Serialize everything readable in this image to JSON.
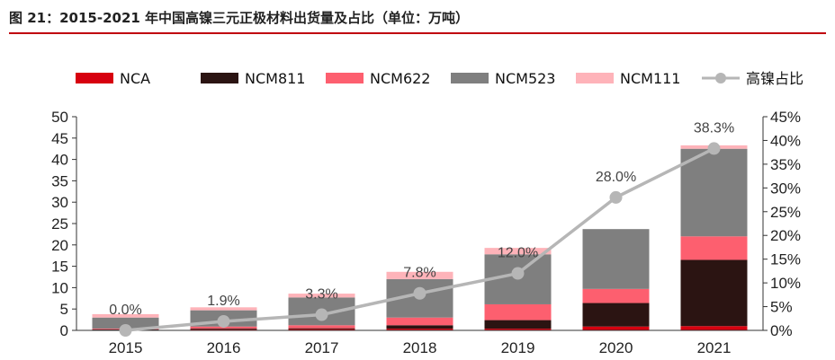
{
  "title": "图 21：2015-2021 年中国高镍三元正极材料出货量及占比（单位：万吨）",
  "chart_data": {
    "type": "bar",
    "stacked": true,
    "categories": [
      "2015",
      "2016",
      "2017",
      "2018",
      "2019",
      "2020",
      "2021"
    ],
    "series": [
      {
        "name": "NCA",
        "values": [
          0.1,
          0.2,
          0.3,
          0.4,
          0.4,
          0.9,
          1.0
        ],
        "color": "#d7000f"
      },
      {
        "name": "NCM811",
        "values": [
          0.1,
          0.2,
          0.2,
          0.8,
          2.0,
          5.5,
          15.5
        ],
        "color": "#2b1412"
      },
      {
        "name": "NCM622",
        "values": [
          0.2,
          0.5,
          0.7,
          1.8,
          3.7,
          3.3,
          5.5
        ],
        "color": "#fd5f6f"
      },
      {
        "name": "NCM523",
        "values": [
          2.6,
          3.8,
          6.5,
          9.0,
          11.7,
          14.0,
          20.5
        ],
        "color": "#7f7f7f"
      },
      {
        "name": "NCM111",
        "values": [
          0.8,
          0.7,
          0.9,
          1.7,
          1.5,
          0.0,
          0.8
        ],
        "color": "#feb3b9"
      }
    ],
    "line_series": {
      "name": "高镍占比",
      "values": [
        0.0,
        1.9,
        3.3,
        7.8,
        12.0,
        28.0,
        38.3
      ],
      "labels": [
        "0.0%",
        "1.9%",
        "3.3%",
        "7.8%",
        "12.0%",
        "28.0%",
        "38.3%"
      ],
      "color": "#b6b6b6",
      "axis": "right"
    },
    "y_left": {
      "min": 0,
      "max": 50,
      "ticks": [
        "0",
        "5",
        "10",
        "15",
        "20",
        "25",
        "30",
        "35",
        "40",
        "45",
        "50"
      ]
    },
    "y_right": {
      "min": 0,
      "max": 45,
      "ticks": [
        "0%",
        "5%",
        "10%",
        "15%",
        "20%",
        "25%",
        "30%",
        "35%",
        "40%",
        "45%"
      ]
    },
    "legend_position": "top",
    "grid": false
  }
}
